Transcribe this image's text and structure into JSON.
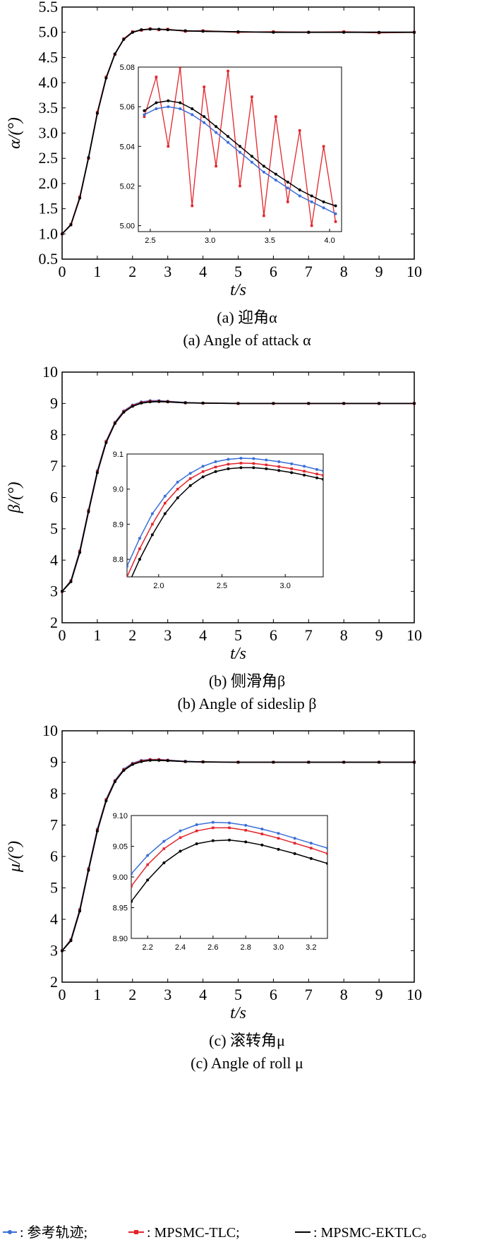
{
  "colors": {
    "reference": "#3a6fd8",
    "tlc": "#e3242b",
    "ektlc": "#000000"
  },
  "legend": {
    "reference_label": ": 参考轨迹;",
    "tlc_label": ": MPSMC-TLC;",
    "ektlc_label": ": MPSMC-EKTLC。"
  },
  "chart_data": [
    {
      "type": "line",
      "caption_cn": "(a) 迎角α",
      "caption_en": "(a) Angle of attack α",
      "xlabel": "t/s",
      "ylabel": "α/(°)",
      "xlim": [
        0,
        10
      ],
      "ylim": [
        0.5,
        5.5
      ],
      "xticks": [
        "0",
        "1",
        "2",
        "3",
        "4",
        "5",
        "6",
        "7",
        "8",
        "9",
        "10"
      ],
      "yticks": [
        "0.5",
        "1.0",
        "1.5",
        "2.0",
        "2.5",
        "3.0",
        "3.5",
        "4.0",
        "4.5",
        "5.0",
        "5.5"
      ],
      "x": [
        0,
        0.25,
        0.5,
        0.75,
        1.0,
        1.25,
        1.5,
        1.75,
        2.0,
        2.25,
        2.5,
        2.75,
        3.0,
        3.5,
        4.0,
        5.0,
        6.0,
        7.0,
        8.0,
        9.0,
        10.0
      ],
      "series": [
        {
          "name": "参考轨迹",
          "values": [
            1.0,
            1.18,
            1.72,
            2.52,
            3.4,
            4.1,
            4.57,
            4.86,
            5.0,
            5.05,
            5.06,
            5.06,
            5.05,
            5.03,
            5.02,
            5.01,
            5.0,
            5.0,
            5.0,
            5.0,
            5.0
          ]
        },
        {
          "name": "MPSMC-TLC",
          "values": [
            1.0,
            1.19,
            1.73,
            2.5,
            3.41,
            4.11,
            4.56,
            4.87,
            5.01,
            5.04,
            5.07,
            5.05,
            5.06,
            5.02,
            5.03,
            5.0,
            5.01,
            5.0,
            5.01,
            4.99,
            5.0
          ]
        },
        {
          "name": "MPSMC-EKTLC",
          "values": [
            1.0,
            1.18,
            1.71,
            2.51,
            3.39,
            4.09,
            4.57,
            4.86,
            5.0,
            5.05,
            5.06,
            5.06,
            5.05,
            5.03,
            5.02,
            5.01,
            5.0,
            5.0,
            5.0,
            5.0,
            5.0
          ]
        }
      ],
      "inset": {
        "xlim": [
          2.4,
          4.1
        ],
        "ylim": [
          4.997,
          5.08
        ],
        "xticks": [
          "2.5",
          "3.0",
          "3.5",
          "4.0"
        ],
        "yticks": [
          "5.00",
          "5.02",
          "5.04",
          "5.06",
          "5.08"
        ],
        "x": [
          2.45,
          2.55,
          2.65,
          2.75,
          2.85,
          2.95,
          3.05,
          3.15,
          3.25,
          3.35,
          3.45,
          3.55,
          3.65,
          3.75,
          3.85,
          3.95,
          4.05
        ],
        "series": [
          {
            "name": "参考轨迹",
            "values": [
              5.056,
              5.059,
              5.06,
              5.059,
              5.056,
              5.052,
              5.047,
              5.042,
              5.037,
              5.032,
              5.027,
              5.023,
              5.019,
              5.015,
              5.012,
              5.009,
              5.006
            ]
          },
          {
            "name": "MPSMC-TLC",
            "values": [
              5.055,
              5.075,
              5.04,
              5.08,
              5.01,
              5.07,
              5.03,
              5.078,
              5.02,
              5.065,
              5.005,
              5.055,
              5.012,
              5.048,
              5.0,
              5.04,
              5.002
            ]
          },
          {
            "name": "MPSMC-EKTLC",
            "values": [
              5.058,
              5.062,
              5.063,
              5.062,
              5.059,
              5.055,
              5.05,
              5.045,
              5.04,
              5.035,
              5.03,
              5.026,
              5.022,
              5.018,
              5.015,
              5.012,
              5.01
            ]
          }
        ]
      }
    },
    {
      "type": "line",
      "caption_cn": "(b) 侧滑角β",
      "caption_en": "(b) Angle of sideslip β",
      "xlabel": "t/s",
      "ylabel": "β/(°)",
      "xlim": [
        0,
        10
      ],
      "ylim": [
        2,
        10
      ],
      "xticks": [
        "0",
        "1",
        "2",
        "3",
        "4",
        "5",
        "6",
        "7",
        "8",
        "9",
        "10"
      ],
      "yticks": [
        "2",
        "3",
        "4",
        "5",
        "6",
        "7",
        "8",
        "9",
        "10"
      ],
      "x": [
        0,
        0.25,
        0.5,
        0.75,
        1.0,
        1.25,
        1.5,
        1.75,
        2.0,
        2.25,
        2.5,
        2.75,
        3.0,
        3.5,
        4.0,
        5.0,
        6.0,
        7.0,
        8.0,
        9.0,
        10.0
      ],
      "series": [
        {
          "name": "参考轨迹",
          "values": [
            3.0,
            3.35,
            4.3,
            5.6,
            6.85,
            7.8,
            8.4,
            8.76,
            8.95,
            9.05,
            9.09,
            9.09,
            9.07,
            9.03,
            9.01,
            9.0,
            9.0,
            9.0,
            9.0,
            9.0,
            9.0
          ]
        },
        {
          "name": "MPSMC-TLC",
          "values": [
            3.0,
            3.33,
            4.27,
            5.57,
            6.82,
            7.78,
            8.38,
            8.74,
            8.93,
            9.03,
            9.07,
            9.07,
            9.06,
            9.02,
            9.01,
            9.0,
            9.0,
            9.0,
            9.0,
            9.0,
            9.0
          ]
        },
        {
          "name": "MPSMC-EKTLC",
          "values": [
            3.0,
            3.31,
            4.24,
            5.54,
            6.79,
            7.75,
            8.36,
            8.72,
            8.91,
            9.01,
            9.05,
            9.06,
            9.05,
            9.02,
            9.01,
            9.0,
            9.0,
            9.0,
            9.0,
            9.0,
            9.0
          ]
        }
      ],
      "inset": {
        "xlim": [
          1.75,
          3.3
        ],
        "ylim": [
          8.75,
          9.1
        ],
        "xticks": [
          "2.0",
          "2.5",
          "3.0"
        ],
        "yticks": [
          "8.8",
          "8.9",
          "9.0",
          "9.1"
        ],
        "x": [
          1.75,
          1.85,
          1.95,
          2.05,
          2.15,
          2.25,
          2.35,
          2.45,
          2.55,
          2.65,
          2.75,
          2.85,
          2.95,
          3.05,
          3.15,
          3.25,
          3.3
        ],
        "series": [
          {
            "name": "参考轨迹",
            "values": [
              8.78,
              8.86,
              8.93,
              8.98,
              9.02,
              9.045,
              9.065,
              9.078,
              9.085,
              9.088,
              9.087,
              9.083,
              9.078,
              9.072,
              9.065,
              9.056,
              9.052
            ]
          },
          {
            "name": "MPSMC-TLC",
            "values": [
              8.75,
              8.83,
              8.9,
              8.96,
              9.0,
              9.03,
              9.05,
              9.063,
              9.071,
              9.074,
              9.073,
              9.069,
              9.064,
              9.058,
              9.051,
              9.043,
              9.039
            ]
          },
          {
            "name": "MPSMC-EKTLC",
            "values": [
              8.72,
              8.8,
              8.87,
              8.93,
              8.975,
              9.01,
              9.035,
              9.05,
              9.058,
              9.061,
              9.061,
              9.058,
              9.053,
              9.047,
              9.04,
              9.032,
              9.028
            ]
          }
        ]
      }
    },
    {
      "type": "line",
      "caption_cn": "(c) 滚转角μ",
      "caption_en": "(c) Angle of roll μ",
      "xlabel": "t/s",
      "ylabel": "μ/(°)",
      "xlim": [
        0,
        10
      ],
      "ylim": [
        2,
        10
      ],
      "xticks": [
        "0",
        "1",
        "2",
        "3",
        "4",
        "5",
        "6",
        "7",
        "8",
        "9",
        "10"
      ],
      "yticks": [
        "2",
        "3",
        "4",
        "5",
        "6",
        "7",
        "8",
        "9",
        "10"
      ],
      "x": [
        0,
        0.25,
        0.5,
        0.75,
        1.0,
        1.25,
        1.5,
        1.75,
        2.0,
        2.25,
        2.5,
        2.75,
        3.0,
        3.5,
        4.0,
        5.0,
        6.0,
        7.0,
        8.0,
        9.0,
        10.0
      ],
      "series": [
        {
          "name": "参考轨迹",
          "values": [
            3.0,
            3.36,
            4.32,
            5.62,
            6.87,
            7.82,
            8.42,
            8.78,
            8.97,
            9.06,
            9.09,
            9.09,
            9.07,
            9.03,
            9.01,
            9.0,
            9.0,
            9.0,
            9.0,
            9.0,
            9.0
          ]
        },
        {
          "name": "MPSMC-TLC",
          "values": [
            3.0,
            3.34,
            4.29,
            5.59,
            6.84,
            7.8,
            8.4,
            8.76,
            8.95,
            9.04,
            9.08,
            9.08,
            9.06,
            9.02,
            9.01,
            9.0,
            9.0,
            9.0,
            9.0,
            9.0,
            9.0
          ]
        },
        {
          "name": "MPSMC-EKTLC",
          "values": [
            3.0,
            3.32,
            4.26,
            5.56,
            6.81,
            7.77,
            8.38,
            8.74,
            8.93,
            9.02,
            9.06,
            9.06,
            9.05,
            9.02,
            9.01,
            9.0,
            9.0,
            9.0,
            9.0,
            9.0,
            9.0
          ]
        }
      ],
      "inset": {
        "xlim": [
          2.1,
          3.3
        ],
        "ylim": [
          8.9,
          9.1
        ],
        "xticks": [
          "2.2",
          "2.4",
          "2.6",
          "2.8",
          "3.0",
          "3.2"
        ],
        "yticks": [
          "8.90",
          "8.95",
          "9.00",
          "9.05",
          "9.10"
        ],
        "x": [
          2.1,
          2.2,
          2.3,
          2.4,
          2.5,
          2.6,
          2.7,
          2.8,
          2.9,
          3.0,
          3.1,
          3.2,
          3.3
        ],
        "series": [
          {
            "name": "参考轨迹",
            "values": [
              9.005,
              9.035,
              9.058,
              9.075,
              9.085,
              9.089,
              9.088,
              9.084,
              9.078,
              9.071,
              9.063,
              9.055,
              9.047
            ]
          },
          {
            "name": "MPSMC-TLC",
            "values": [
              8.985,
              9.02,
              9.046,
              9.064,
              9.075,
              9.08,
              9.08,
              9.076,
              9.07,
              9.063,
              9.055,
              9.047,
              9.038
            ]
          },
          {
            "name": "MPSMC-EKTLC",
            "values": [
              8.96,
              8.995,
              9.023,
              9.042,
              9.054,
              9.059,
              9.06,
              9.057,
              9.052,
              9.045,
              9.038,
              9.03,
              9.022
            ]
          }
        ]
      }
    }
  ]
}
